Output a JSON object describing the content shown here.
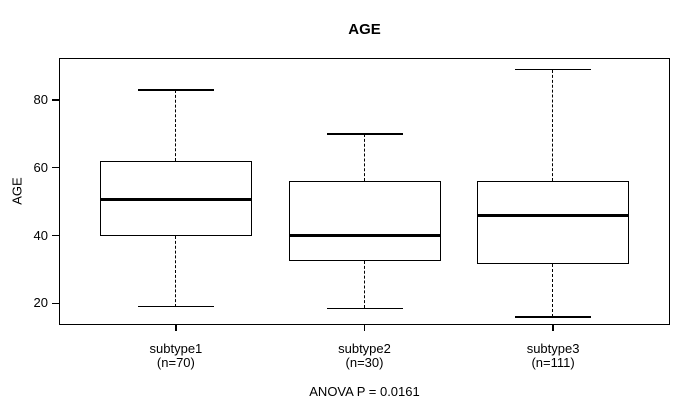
{
  "chart_data": {
    "type": "boxplot",
    "title": "AGE",
    "ylabel": "AGE",
    "xlabel": "",
    "annotation": "ANOVA P = 0.0161",
    "yticks": [
      20,
      40,
      60,
      80
    ],
    "ylim": [
      13.6,
      92.4
    ],
    "grid": false,
    "legend": "none",
    "groups": [
      {
        "label": "subtype1",
        "sublabel": "(n=70)",
        "whisker_low": 19,
        "q1": 40,
        "median": 50.5,
        "q3": 62,
        "whisker_high": 83
      },
      {
        "label": "subtype2",
        "sublabel": "(n=30)",
        "whisker_low": 18.5,
        "q1": 32.5,
        "median": 40,
        "q3": 56,
        "whisker_high": 70
      },
      {
        "label": "subtype3",
        "sublabel": "(n=111)",
        "whisker_low": 16,
        "q1": 31.5,
        "median": 46,
        "q3": 56,
        "whisker_high": 89
      }
    ],
    "colors": {
      "line": "#000000",
      "text": "#000000",
      "background": "#ffffff"
    }
  }
}
